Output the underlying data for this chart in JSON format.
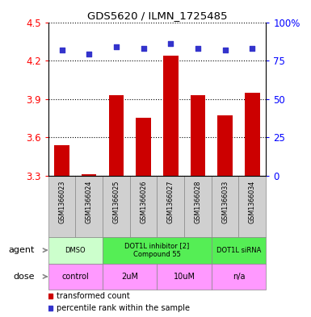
{
  "title": "GDS5620 / ILMN_1725485",
  "samples": [
    "GSM1366023",
    "GSM1366024",
    "GSM1366025",
    "GSM1366026",
    "GSM1366027",
    "GSM1366028",
    "GSM1366033",
    "GSM1366034"
  ],
  "bar_values": [
    3.54,
    3.31,
    3.93,
    3.75,
    4.24,
    3.93,
    3.77,
    3.95
  ],
  "percentile_values": [
    82,
    79,
    84,
    83,
    86,
    83,
    82,
    83
  ],
  "ylim": [
    3.3,
    4.5
  ],
  "yticks_left": [
    3.3,
    3.6,
    3.9,
    4.2,
    4.5
  ],
  "yticks_right": [
    0,
    25,
    50,
    75,
    100
  ],
  "bar_color": "#cc0000",
  "dot_color": "#3333cc",
  "agent_groups": [
    {
      "label": "DMSO",
      "start": 0,
      "end": 2,
      "color": "#ccffcc"
    },
    {
      "label": "DOT1L inhibitor [2]\nCompound 55",
      "start": 2,
      "end": 6,
      "color": "#55ee55"
    },
    {
      "label": "DOT1L siRNA",
      "start": 6,
      "end": 8,
      "color": "#55ee55"
    }
  ],
  "dose_groups": [
    {
      "label": "control",
      "start": 0,
      "end": 2,
      "color": "#ff99ff"
    },
    {
      "label": "2uM",
      "start": 2,
      "end": 4,
      "color": "#ff99ff"
    },
    {
      "label": "10uM",
      "start": 4,
      "end": 6,
      "color": "#ff99ff"
    },
    {
      "label": "n/a",
      "start": 6,
      "end": 8,
      "color": "#ff99ff"
    }
  ],
  "legend_items": [
    {
      "label": "transformed count",
      "color": "#cc0000"
    },
    {
      "label": "percentile rank within the sample",
      "color": "#3333cc"
    }
  ],
  "sample_bg": "#d0d0d0",
  "bar_width": 0.55
}
